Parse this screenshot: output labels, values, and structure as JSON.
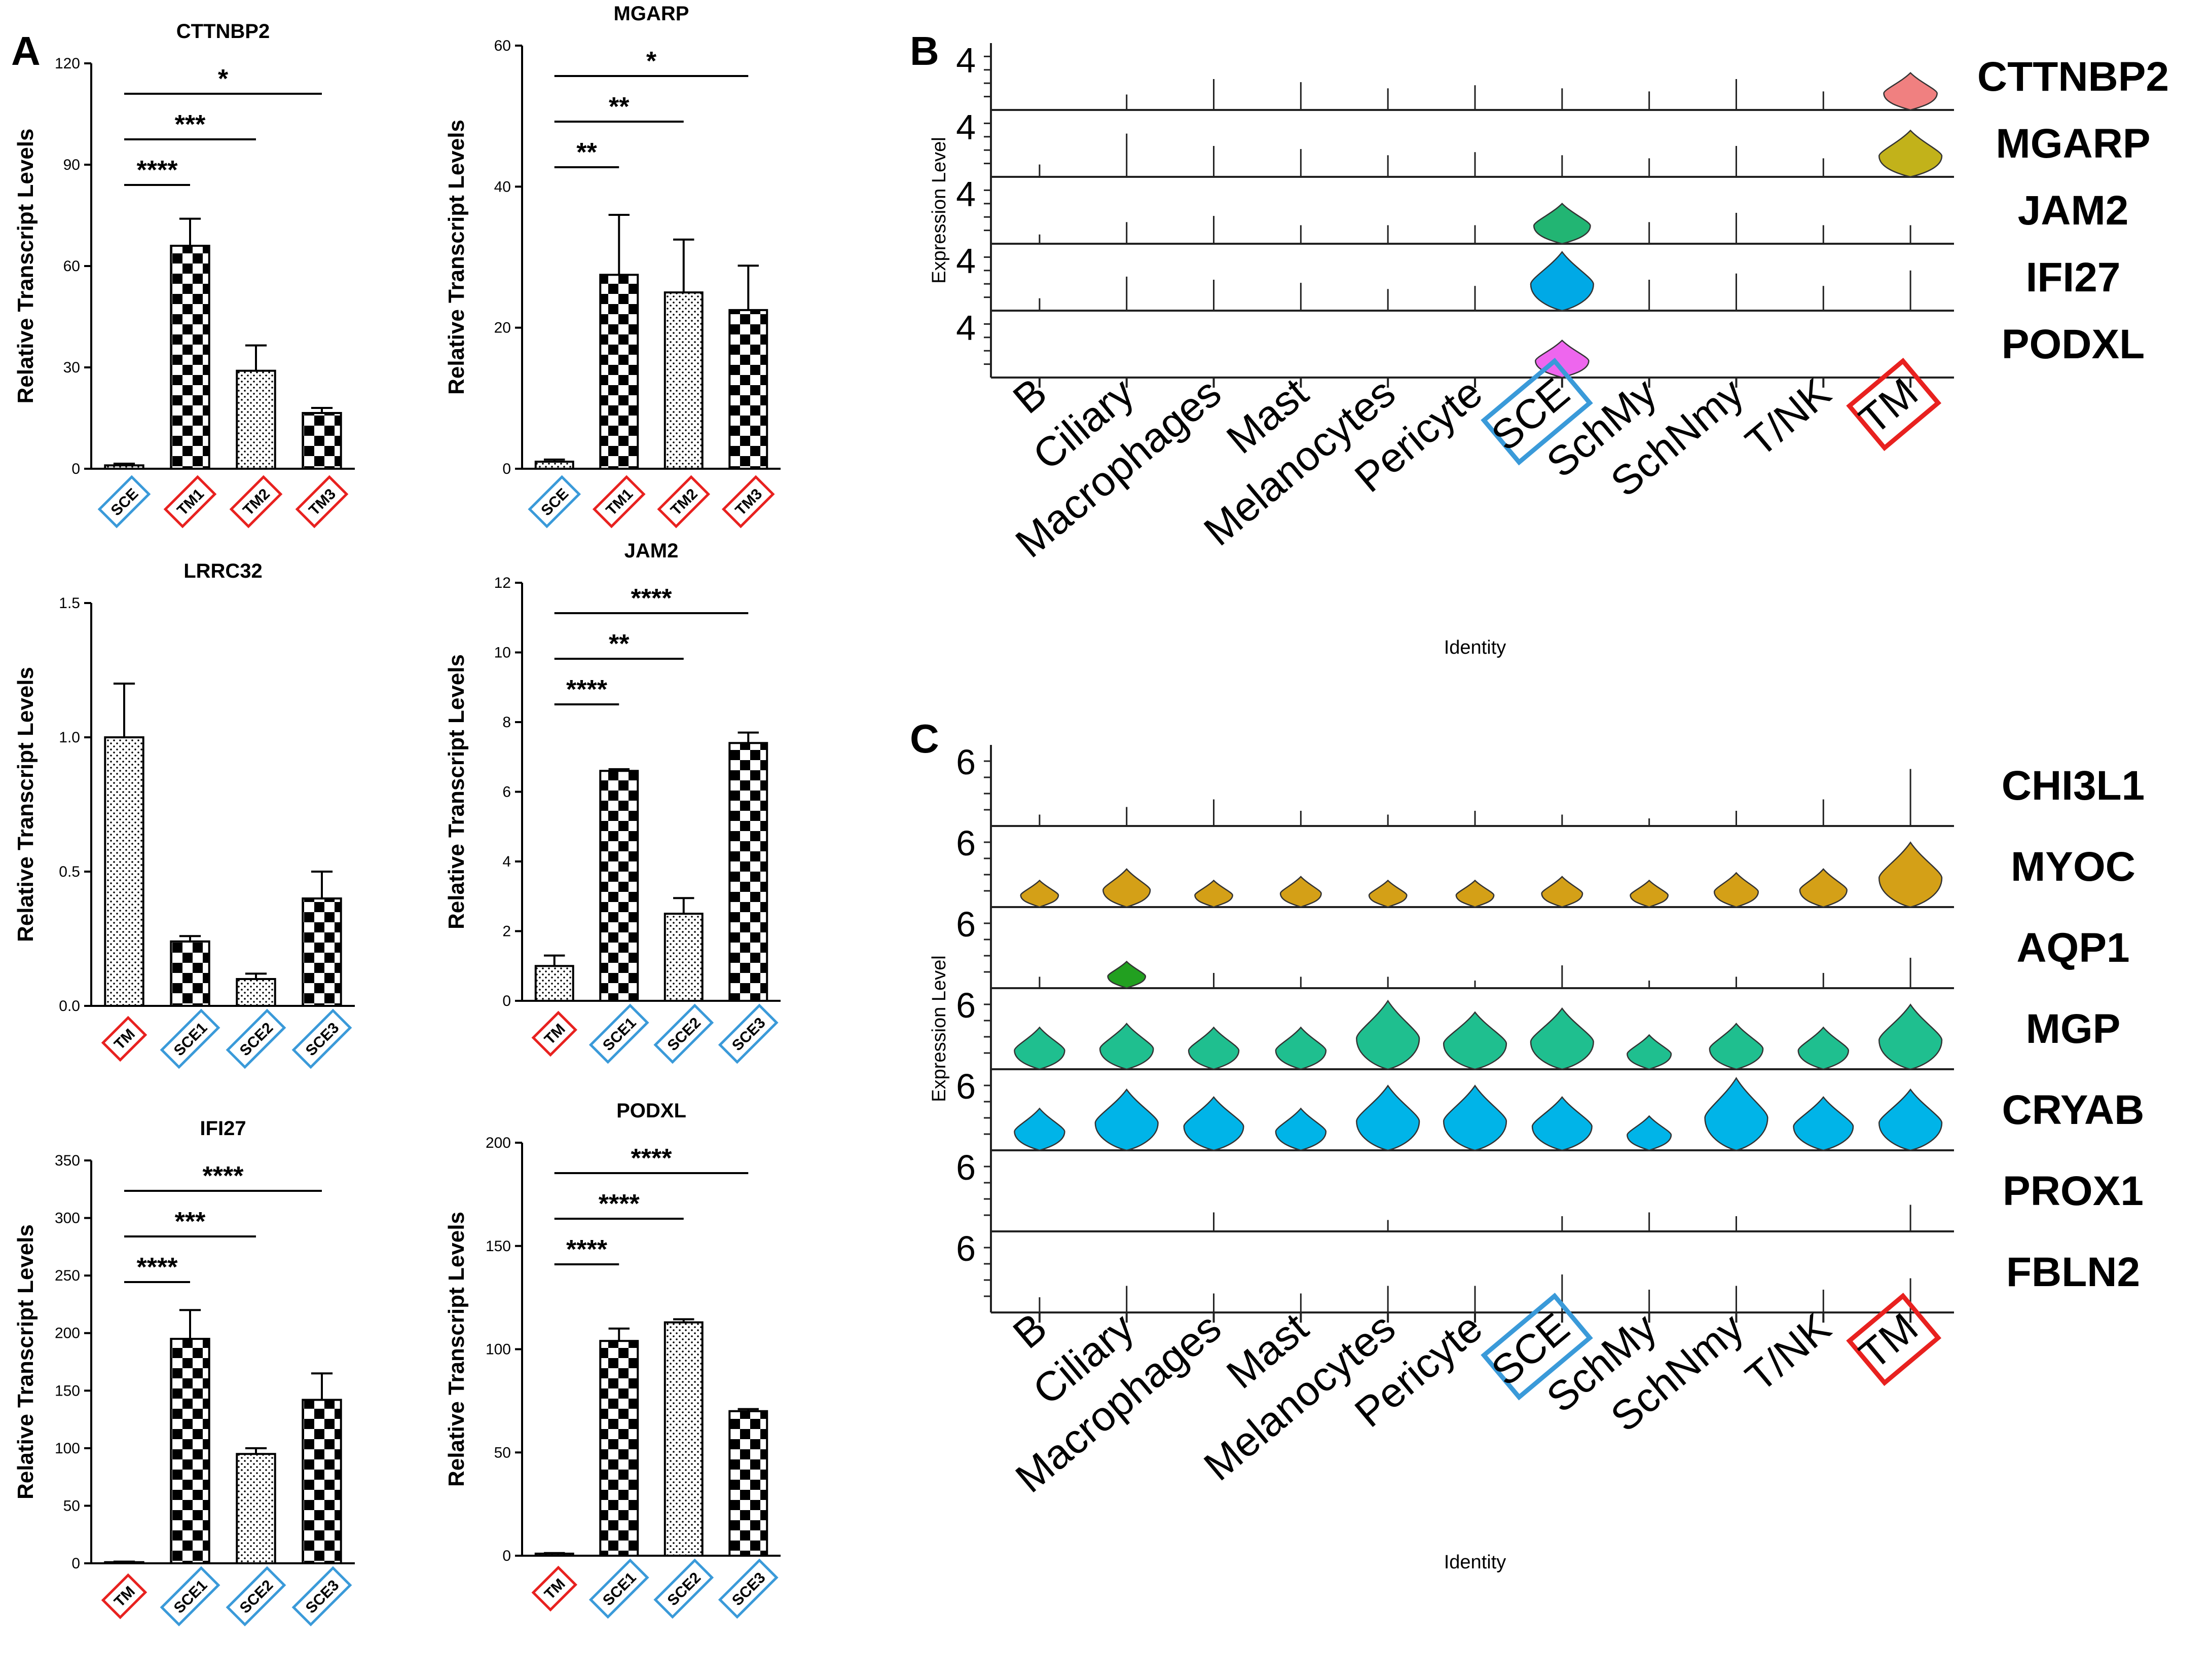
{
  "colors": {
    "sce_box": "#3a9ad9",
    "tm_box": "#e8211f",
    "violin_stroke": "#333333"
  },
  "panel_letters": {
    "a": "A",
    "b": "B",
    "c": "C"
  },
  "chart_data": [
    {
      "type": "bar",
      "panel": "A",
      "title": "CTTNBP2",
      "ylabel": "Relative Transcript Levels",
      "categories": [
        "SCE",
        "TM1",
        "TM2",
        "TM3"
      ],
      "values": [
        1,
        66,
        29,
        16.5
      ],
      "errors": [
        0.5,
        8,
        7.5,
        1.5
      ],
      "patterns": [
        "dots",
        "checker",
        "dots",
        "checker"
      ],
      "box_colors": [
        "sce",
        "tm",
        "tm",
        "tm"
      ],
      "ylim": [
        0,
        120
      ],
      "yticks": [
        "0",
        "30",
        "60",
        "90",
        "120"
      ],
      "sig": [
        {
          "from": 0,
          "to": 1,
          "label": "****"
        },
        {
          "from": 0,
          "to": 2,
          "label": "***"
        },
        {
          "from": 0,
          "to": 3,
          "label": "*"
        }
      ]
    },
    {
      "type": "bar",
      "panel": "A",
      "title": "MGARP",
      "ylabel": "Relative Transcript Levels",
      "categories": [
        "SCE",
        "TM1",
        "TM2",
        "TM3"
      ],
      "values": [
        1,
        27.5,
        25,
        22.5
      ],
      "errors": [
        0.3,
        8.5,
        7.5,
        6.3
      ],
      "patterns": [
        "dots",
        "checker",
        "dots",
        "checker"
      ],
      "box_colors": [
        "sce",
        "tm",
        "tm",
        "tm"
      ],
      "ylim": [
        0,
        60
      ],
      "yticks": [
        "0",
        "20",
        "40",
        "60"
      ],
      "sig": [
        {
          "from": 0,
          "to": 1,
          "label": "**"
        },
        {
          "from": 0,
          "to": 2,
          "label": "**"
        },
        {
          "from": 0,
          "to": 3,
          "label": "*"
        }
      ]
    },
    {
      "type": "bar",
      "panel": "A",
      "title": "LRRC32",
      "ylabel": "Relative Transcript Levels",
      "categories": [
        "TM",
        "SCE1",
        "SCE2",
        "SCE3"
      ],
      "values": [
        1.0,
        0.24,
        0.1,
        0.4
      ],
      "errors": [
        0.2,
        0.02,
        0.02,
        0.1
      ],
      "patterns": [
        "dots",
        "checker",
        "dots",
        "checker"
      ],
      "box_colors": [
        "tm",
        "sce",
        "sce",
        "sce"
      ],
      "ylim": [
        0,
        1.5
      ],
      "yticks": [
        "0.0",
        "0.5",
        "1.0",
        "1.5"
      ],
      "sig": []
    },
    {
      "type": "bar",
      "panel": "A",
      "title": "JAM2",
      "ylabel": "Relative Transcript Levels",
      "categories": [
        "TM",
        "SCE1",
        "SCE2",
        "SCE3"
      ],
      "values": [
        1,
        6.6,
        2.5,
        7.4
      ],
      "errors": [
        0.3,
        0.05,
        0.45,
        0.3
      ],
      "patterns": [
        "dots",
        "checker",
        "dots",
        "checker"
      ],
      "box_colors": [
        "tm",
        "sce",
        "sce",
        "sce"
      ],
      "ylim": [
        0,
        12
      ],
      "yticks": [
        "0",
        "2",
        "4",
        "6",
        "8",
        "10",
        "12"
      ],
      "sig": [
        {
          "from": 0,
          "to": 1,
          "label": "****"
        },
        {
          "from": 0,
          "to": 2,
          "label": "**"
        },
        {
          "from": 0,
          "to": 3,
          "label": "****"
        }
      ]
    },
    {
      "type": "bar",
      "panel": "A",
      "title": "IFI27",
      "ylabel": "Relative Transcript Levels",
      "categories": [
        "TM",
        "SCE1",
        "SCE2",
        "SCE3"
      ],
      "values": [
        1,
        195,
        95,
        142
      ],
      "errors": [
        0.5,
        25,
        5,
        23
      ],
      "patterns": [
        "dots",
        "checker",
        "dots",
        "checker"
      ],
      "box_colors": [
        "tm",
        "sce",
        "sce",
        "sce"
      ],
      "ylim": [
        0,
        350
      ],
      "yticks": [
        "0",
        "50",
        "100",
        "150",
        "200",
        "250",
        "300",
        "350"
      ],
      "sig": [
        {
          "from": 0,
          "to": 1,
          "label": "****"
        },
        {
          "from": 0,
          "to": 2,
          "label": "***"
        },
        {
          "from": 0,
          "to": 3,
          "label": "****"
        }
      ]
    },
    {
      "type": "bar",
      "panel": "A",
      "title": "PODXL",
      "ylabel": "Relative Transcript Levels",
      "categories": [
        "TM",
        "SCE1",
        "SCE2",
        "SCE3"
      ],
      "values": [
        1,
        104,
        113,
        70
      ],
      "errors": [
        0.3,
        6,
        1.5,
        1
      ],
      "patterns": [
        "dots",
        "checker",
        "dots",
        "checker"
      ],
      "box_colors": [
        "tm",
        "sce",
        "sce",
        "sce"
      ],
      "ylim": [
        0,
        200
      ],
      "yticks": [
        "0",
        "50",
        "100",
        "150",
        "200"
      ],
      "sig": [
        {
          "from": 0,
          "to": 1,
          "label": "****"
        },
        {
          "from": 0,
          "to": 2,
          "label": "****"
        },
        {
          "from": 0,
          "to": 3,
          "label": "****"
        }
      ]
    },
    {
      "type": "violin",
      "panel": "B",
      "ylabel": "Expression Level",
      "xlabel": "Identity",
      "ytick": "4",
      "identities": [
        "B",
        "Ciliary",
        "Macrophages",
        "Mast",
        "Melanocytes",
        "Pericyte",
        "SCE",
        "SchMy",
        "SchNmy",
        "T/NK",
        "TM"
      ],
      "highlight": {
        "SCE": "sce",
        "TM": "tm"
      },
      "genes": [
        {
          "name": "CTTNBP2",
          "color": "#f08080",
          "levels": [
            0,
            0.25,
            0.5,
            0.45,
            0.35,
            0.4,
            0.35,
            0.3,
            0.5,
            0.3,
            0.65
          ],
          "violin": {
            "TM": 0.6
          }
        },
        {
          "name": "MGARP",
          "color": "#c2b21a",
          "levels": [
            0.2,
            0.7,
            0.5,
            0.45,
            0.35,
            0.4,
            0.35,
            0.3,
            0.5,
            0.3,
            0.65
          ],
          "violin": {
            "TM": 0.75
          }
        },
        {
          "name": "JAM2",
          "color": "#22b573",
          "levels": [
            0.15,
            0.35,
            0.45,
            0.3,
            0.3,
            0.3,
            0.6,
            0.35,
            0.5,
            0.3,
            0.3
          ],
          "violin": {
            "SCE": 0.65
          }
        },
        {
          "name": "IFI27",
          "color": "#00a9e6",
          "levels": [
            0.2,
            0.55,
            0.5,
            0.45,
            0.35,
            0.4,
            0.9,
            0.5,
            0.6,
            0.4,
            0.65
          ],
          "violin": {
            "SCE": 0.95
          }
        },
        {
          "name": "PODXL",
          "color": "#ee66ee",
          "levels": [
            0,
            0,
            0,
            0,
            0,
            0,
            0.6,
            0,
            0,
            0,
            0
          ],
          "violin": {
            "SCE": 0.6
          }
        }
      ]
    },
    {
      "type": "violin",
      "panel": "C",
      "ylabel": "Expression Level",
      "xlabel": "Identity",
      "ytick": "6",
      "identities": [
        "B",
        "Ciliary",
        "Macrophages",
        "Mast",
        "Melanocytes",
        "Pericyte",
        "SCE",
        "SchMy",
        "SchNmy",
        "T/NK",
        "TM"
      ],
      "highlight": {
        "SCE": "sce",
        "TM": "tm"
      },
      "genes": [
        {
          "name": "CHI3L1",
          "color": "#22b573",
          "levels": [
            0.15,
            0.25,
            0.35,
            0.2,
            0.15,
            0.2,
            0.15,
            0.1,
            0.2,
            0.35,
            0.75
          ],
          "violin": {}
        },
        {
          "name": "MYOC",
          "color": "#d4a017",
          "levels": [
            0.35,
            0.5,
            0.35,
            0.4,
            0.35,
            0.35,
            0.4,
            0.35,
            0.45,
            0.5,
            0.85
          ],
          "violin": {
            "B": 0.35,
            "Ciliary": 0.5,
            "Macrophages": 0.35,
            "Mast": 0.4,
            "Melanocytes": 0.35,
            "Pericyte": 0.35,
            "SCE": 0.4,
            "SchMy": 0.35,
            "SchNmy": 0.45,
            "T/NK": 0.5,
            "TM": 0.85
          }
        },
        {
          "name": "AQP1",
          "color": "#22a020",
          "levels": [
            0.15,
            0.35,
            0.2,
            0.15,
            0.15,
            0.1,
            0.3,
            0.1,
            0.15,
            0.2,
            0.4
          ],
          "violin": {
            "Ciliary": 0.35
          }
        },
        {
          "name": "MGP",
          "color": "#1fbf8f",
          "levels": [
            0.55,
            0.6,
            0.55,
            0.55,
            0.9,
            0.75,
            0.8,
            0.45,
            0.6,
            0.55,
            0.85
          ],
          "violin": {
            "B": 0.55,
            "Ciliary": 0.6,
            "Macrophages": 0.55,
            "Mast": 0.55,
            "Melanocytes": 0.9,
            "Pericyte": 0.75,
            "SCE": 0.8,
            "SchMy": 0.45,
            "SchNmy": 0.6,
            "T/NK": 0.55,
            "TM": 0.85
          }
        },
        {
          "name": "CRYAB",
          "color": "#00b4e8",
          "levels": [
            0.55,
            0.8,
            0.7,
            0.55,
            0.85,
            0.85,
            0.7,
            0.45,
            0.95,
            0.7,
            0.8
          ],
          "violin": {
            "B": 0.55,
            "Ciliary": 0.8,
            "Macrophages": 0.7,
            "Mast": 0.55,
            "Melanocytes": 0.85,
            "Pericyte": 0.85,
            "SCE": 0.7,
            "SchMy": 0.45,
            "SchNmy": 0.95,
            "T/NK": 0.7,
            "TM": 0.8
          }
        },
        {
          "name": "PROX1",
          "color": "#7f7fff",
          "levels": [
            0,
            0,
            0.25,
            0,
            0.15,
            0,
            0.2,
            0.25,
            0.2,
            0,
            0.35
          ],
          "violin": {}
        },
        {
          "name": "FBLN2",
          "color": "#ff88ff",
          "levels": [
            0.2,
            0.35,
            0.25,
            0.25,
            0.35,
            0.35,
            0.5,
            0.3,
            0.35,
            0.3,
            0.45
          ],
          "violin": {}
        }
      ]
    }
  ]
}
